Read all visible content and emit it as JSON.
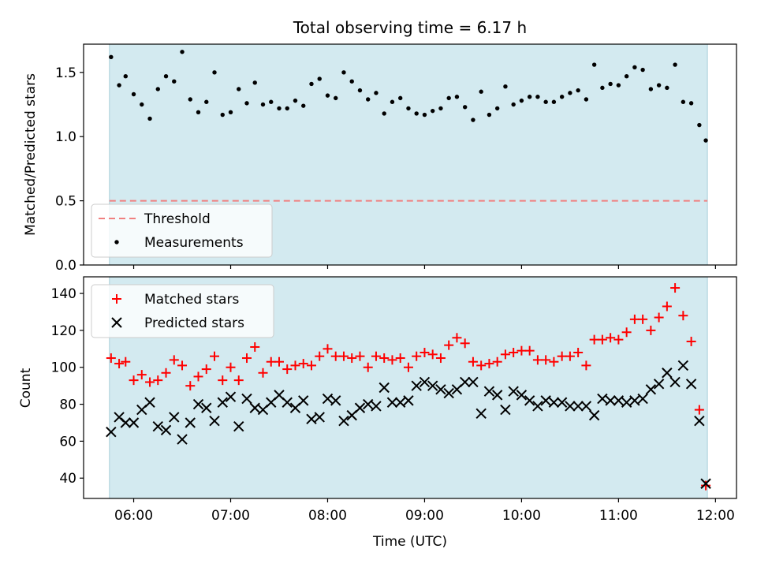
{
  "figure": {
    "title": "Total observing time = 6.17 h",
    "xlabel": "Time (UTC)",
    "x_tick_labels": [
      "06:00",
      "07:00",
      "08:00",
      "09:00",
      "10:00",
      "11:00",
      "12:00"
    ],
    "observing_window": [
      "05:45",
      "11:55"
    ],
    "colors": {
      "window": "#d3eaf0",
      "threshold": "#f08080",
      "measurements": "#000000",
      "matched": "#ff0000",
      "predicted": "#000000"
    }
  },
  "chart_data": [
    {
      "type": "scatter",
      "ylabel": "Matched/Predicted stars",
      "ylim": [
        0,
        1.72
      ],
      "y_ticks": [
        0.0,
        0.5,
        1.0,
        1.5
      ],
      "y_tick_labels": [
        "0.0",
        "0.5",
        "1.0",
        "1.5"
      ],
      "legend_position": "lower-left",
      "threshold": {
        "name": "Threshold",
        "value": 0.5
      },
      "series": [
        {
          "name": "Measurements",
          "x": [
            "05:46",
            "05:51",
            "05:55",
            "06:00",
            "06:05",
            "06:10",
            "06:15",
            "06:20",
            "06:25",
            "06:30",
            "06:35",
            "06:40",
            "06:45",
            "06:50",
            "06:55",
            "07:00",
            "07:05",
            "07:10",
            "07:15",
            "07:20",
            "07:25",
            "07:30",
            "07:35",
            "07:40",
            "07:45",
            "07:50",
            "07:55",
            "08:00",
            "08:05",
            "08:10",
            "08:15",
            "08:20",
            "08:25",
            "08:30",
            "08:35",
            "08:40",
            "08:45",
            "08:50",
            "08:55",
            "09:00",
            "09:05",
            "09:10",
            "09:15",
            "09:20",
            "09:25",
            "09:30",
            "09:35",
            "09:40",
            "09:45",
            "09:50",
            "09:55",
            "10:00",
            "10:05",
            "10:10",
            "10:15",
            "10:20",
            "10:25",
            "10:30",
            "10:35",
            "10:40",
            "10:45",
            "10:50",
            "10:55",
            "11:00",
            "11:05",
            "11:10",
            "11:15",
            "11:20",
            "11:25",
            "11:30",
            "11:35",
            "11:40",
            "11:45",
            "11:50",
            "11:54"
          ],
          "y": [
            1.62,
            1.4,
            1.47,
            1.33,
            1.25,
            1.14,
            1.37,
            1.47,
            1.43,
            1.66,
            1.29,
            1.19,
            1.27,
            1.5,
            1.17,
            1.19,
            1.37,
            1.26,
            1.42,
            1.25,
            1.27,
            1.22,
            1.22,
            1.28,
            1.24,
            1.41,
            1.45,
            1.32,
            1.3,
            1.5,
            1.43,
            1.36,
            1.29,
            1.34,
            1.18,
            1.27,
            1.3,
            1.22,
            1.18,
            1.17,
            1.2,
            1.22,
            1.3,
            1.31,
            1.23,
            1.13,
            1.35,
            1.17,
            1.22,
            1.39,
            1.25,
            1.28,
            1.31,
            1.31,
            1.27,
            1.27,
            1.31,
            1.34,
            1.36,
            1.29,
            1.56,
            1.38,
            1.41,
            1.4,
            1.47,
            1.54,
            1.52,
            1.37,
            1.4,
            1.38,
            1.56,
            1.27,
            1.26,
            1.09,
            0.97
          ]
        }
      ]
    },
    {
      "type": "scatter",
      "ylabel": "Count",
      "ylim": [
        29,
        149
      ],
      "y_ticks": [
        40,
        60,
        80,
        100,
        120,
        140
      ],
      "y_tick_labels": [
        "40",
        "60",
        "80",
        "100",
        "120",
        "140"
      ],
      "legend_position": "upper-left",
      "series": [
        {
          "name": "Matched stars",
          "marker": "plus",
          "x": [
            "05:46",
            "05:51",
            "05:55",
            "06:00",
            "06:05",
            "06:10",
            "06:15",
            "06:20",
            "06:25",
            "06:30",
            "06:35",
            "06:40",
            "06:45",
            "06:50",
            "06:55",
            "07:00",
            "07:05",
            "07:10",
            "07:15",
            "07:20",
            "07:25",
            "07:30",
            "07:35",
            "07:40",
            "07:45",
            "07:50",
            "07:55",
            "08:00",
            "08:05",
            "08:10",
            "08:15",
            "08:20",
            "08:25",
            "08:30",
            "08:35",
            "08:40",
            "08:45",
            "08:50",
            "08:55",
            "09:00",
            "09:05",
            "09:10",
            "09:15",
            "09:20",
            "09:25",
            "09:30",
            "09:35",
            "09:40",
            "09:45",
            "09:50",
            "09:55",
            "10:00",
            "10:05",
            "10:10",
            "10:15",
            "10:20",
            "10:25",
            "10:30",
            "10:35",
            "10:40",
            "10:45",
            "10:50",
            "10:55",
            "11:00",
            "11:05",
            "11:10",
            "11:15",
            "11:20",
            "11:25",
            "11:30",
            "11:35",
            "11:40",
            "11:45",
            "11:50",
            "11:54"
          ],
          "y": [
            105,
            102,
            103,
            93,
            96,
            92,
            93,
            97,
            104,
            101,
            90,
            95,
            99,
            106,
            93,
            100,
            93,
            105,
            111,
            97,
            103,
            103,
            99,
            101,
            102,
            101,
            106,
            110,
            106,
            106,
            105,
            106,
            100,
            106,
            105,
            104,
            105,
            100,
            106,
            108,
            107,
            105,
            112,
            116,
            113,
            103,
            101,
            102,
            103,
            107,
            108,
            109,
            109,
            104,
            104,
            103,
            106,
            106,
            108,
            101,
            115,
            115,
            116,
            115,
            119,
            126,
            126,
            120,
            127,
            133,
            143,
            128,
            114,
            77,
            36
          ]
        },
        {
          "name": "Predicted stars",
          "marker": "x",
          "x": [
            "05:46",
            "05:51",
            "05:55",
            "06:00",
            "06:05",
            "06:10",
            "06:15",
            "06:20",
            "06:25",
            "06:30",
            "06:35",
            "06:40",
            "06:45",
            "06:50",
            "06:55",
            "07:00",
            "07:05",
            "07:10",
            "07:15",
            "07:20",
            "07:25",
            "07:30",
            "07:35",
            "07:40",
            "07:45",
            "07:50",
            "07:55",
            "08:00",
            "08:05",
            "08:10",
            "08:15",
            "08:20",
            "08:25",
            "08:30",
            "08:35",
            "08:40",
            "08:45",
            "08:50",
            "08:55",
            "09:00",
            "09:05",
            "09:10",
            "09:15",
            "09:20",
            "09:25",
            "09:30",
            "09:35",
            "09:40",
            "09:45",
            "09:50",
            "09:55",
            "10:00",
            "10:05",
            "10:10",
            "10:15",
            "10:20",
            "10:25",
            "10:30",
            "10:35",
            "10:40",
            "10:45",
            "10:50",
            "10:55",
            "11:00",
            "11:05",
            "11:10",
            "11:15",
            "11:20",
            "11:25",
            "11:30",
            "11:35",
            "11:40",
            "11:45",
            "11:50",
            "11:54"
          ],
          "y": [
            65,
            73,
            70,
            70,
            77,
            81,
            68,
            66,
            73,
            61,
            70,
            80,
            78,
            71,
            81,
            84,
            68,
            83,
            78,
            77,
            81,
            85,
            81,
            78,
            82,
            72,
            73,
            83,
            82,
            71,
            74,
            78,
            80,
            79,
            89,
            81,
            81,
            82,
            90,
            92,
            90,
            88,
            86,
            88,
            92,
            92,
            75,
            87,
            85,
            77,
            87,
            85,
            82,
            79,
            82,
            81,
            81,
            79,
            79,
            79,
            74,
            83,
            82,
            82,
            81,
            82,
            83,
            88,
            91,
            97,
            92,
            101,
            91,
            71,
            37
          ]
        }
      ]
    }
  ]
}
